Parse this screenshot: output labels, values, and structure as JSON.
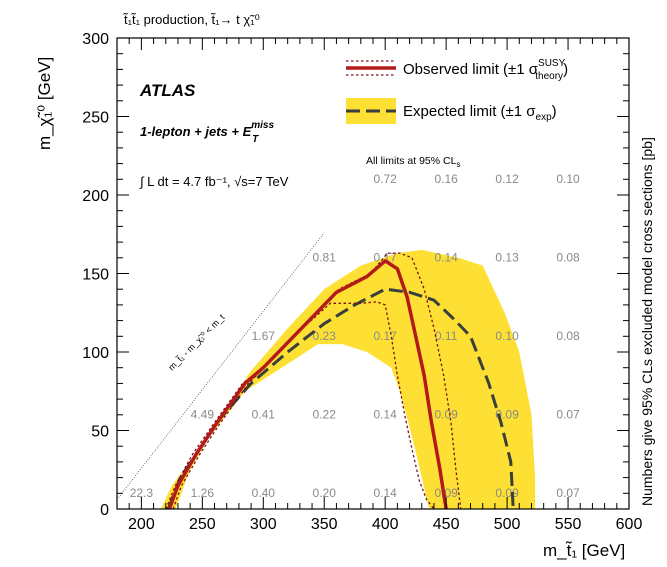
{
  "chart_data": {
    "type": "line",
    "title": "t̃₁t̃₁ production, t̃₁→ t χ̃₁⁰",
    "xlabel": "m_t̃₁ [GeV]",
    "ylabel": "m_χ̃₁⁰ [GeV]",
    "right_label": "Numbers give 95% CLs excluded model cross sections [pb]",
    "xlim": [
      180,
      600
    ],
    "ylim": [
      0,
      300
    ],
    "x_ticks": [
      200,
      250,
      300,
      350,
      400,
      450,
      500,
      550,
      600
    ],
    "y_ticks": [
      0,
      50,
      100,
      150,
      200,
      250,
      300
    ],
    "labels": {
      "atlas": "ATLAS",
      "channel": "1-lepton + jets + E",
      "channel_sup": "miss",
      "channel_sub": "T",
      "lumi": "∫ L dt = 4.7 fb⁻¹, √s=7 TeV",
      "cls_note": "All limits at 95% CL",
      "cls_sub": "s",
      "kinematic": "m_t̃₁ - m_χ̃₁⁰ < m_t"
    },
    "legend": {
      "placement": "top-right",
      "observed": "Observed limit (±1 σ",
      "observed_sup": "SUSY",
      "observed_sub": "theory",
      "expected": "Expected limit (±1 σ",
      "expected_sub": "exp"
    },
    "colors": {
      "observed": "#b31b1b",
      "expected": "#3a3f3a",
      "band": "#fde033",
      "numbers": "#8a8a8a"
    },
    "cross_sections": [
      {
        "x": 200,
        "y": 0,
        "v": "22.3"
      },
      {
        "x": 250,
        "y": 0,
        "v": "1.26"
      },
      {
        "x": 300,
        "y": 0,
        "v": "0.40"
      },
      {
        "x": 350,
        "y": 0,
        "v": "0.20"
      },
      {
        "x": 400,
        "y": 0,
        "v": "0.14"
      },
      {
        "x": 450,
        "y": 0,
        "v": "0.09"
      },
      {
        "x": 500,
        "y": 0,
        "v": "0.09"
      },
      {
        "x": 550,
        "y": 0,
        "v": "0.07"
      },
      {
        "x": 250,
        "y": 50,
        "v": "4.49"
      },
      {
        "x": 300,
        "y": 50,
        "v": "0.41"
      },
      {
        "x": 350,
        "y": 50,
        "v": "0.22"
      },
      {
        "x": 400,
        "y": 50,
        "v": "0.14"
      },
      {
        "x": 450,
        "y": 50,
        "v": "0.09"
      },
      {
        "x": 500,
        "y": 50,
        "v": "0.09"
      },
      {
        "x": 550,
        "y": 50,
        "v": "0.07"
      },
      {
        "x": 300,
        "y": 100,
        "v": "1.67"
      },
      {
        "x": 350,
        "y": 100,
        "v": "0.23"
      },
      {
        "x": 400,
        "y": 100,
        "v": "0.17"
      },
      {
        "x": 450,
        "y": 100,
        "v": "0.11"
      },
      {
        "x": 500,
        "y": 100,
        "v": "0.10"
      },
      {
        "x": 550,
        "y": 100,
        "v": "0.08"
      },
      {
        "x": 350,
        "y": 150,
        "v": "0.81"
      },
      {
        "x": 400,
        "y": 150,
        "v": "0.17"
      },
      {
        "x": 450,
        "y": 150,
        "v": "0.14"
      },
      {
        "x": 500,
        "y": 150,
        "v": "0.13"
      },
      {
        "x": 550,
        "y": 150,
        "v": "0.08"
      },
      {
        "x": 400,
        "y": 200,
        "v": "0.72"
      },
      {
        "x": 450,
        "y": 200,
        "v": "0.16"
      },
      {
        "x": 500,
        "y": 200,
        "v": "0.12"
      },
      {
        "x": 550,
        "y": 200,
        "v": "0.10"
      }
    ],
    "series": [
      {
        "name": "Observed limit",
        "x": [
          223,
          230,
          245,
          262,
          285,
          300,
          325,
          360,
          385,
          400,
          410,
          418,
          425,
          432,
          438,
          445,
          450
        ],
        "y": [
          0,
          15,
          35,
          55,
          80,
          90,
          110,
          138,
          148,
          158,
          153,
          135,
          110,
          85,
          55,
          25,
          0
        ]
      },
      {
        "name": "Observed -1σ theory",
        "x": [
          220,
          228,
          242,
          260,
          283,
          300,
          322,
          355,
          380,
          393,
          400,
          405,
          410,
          416,
          422,
          428,
          434,
          440
        ],
        "y": [
          0,
          15,
          35,
          55,
          80,
          90,
          108,
          131,
          131,
          132,
          130,
          110,
          85,
          60,
          38,
          18,
          6,
          0
        ]
      },
      {
        "name": "Observed +1σ theory",
        "x": [
          226,
          233,
          248,
          265,
          288,
          303,
          328,
          362,
          388,
          402,
          412,
          422,
          432,
          440,
          448,
          454,
          458,
          462
        ],
        "y": [
          0,
          15,
          35,
          55,
          80,
          92,
          112,
          140,
          150,
          163,
          163,
          160,
          140,
          115,
          85,
          55,
          25,
          0
        ]
      },
      {
        "name": "Expected limit",
        "x": [
          222,
          232,
          245,
          265,
          290,
          320,
          350,
          375,
          400,
          420,
          440,
          455,
          470,
          485,
          495,
          503,
          505
        ],
        "y": [
          0,
          20,
          35,
          58,
          80,
          100,
          118,
          130,
          140,
          138,
          133,
          122,
          110,
          80,
          55,
          30,
          0
        ]
      }
    ],
    "band": {
      "upper": {
        "x": [
          228,
          240,
          255,
          270,
          290,
          320,
          350,
          380,
          410,
          430,
          460,
          480,
          498,
          510,
          520,
          523,
          523
        ],
        "y": [
          0,
          25,
          45,
          65,
          88,
          115,
          140,
          155,
          163,
          165,
          160,
          155,
          125,
          100,
          60,
          20,
          0
        ]
      },
      "lower": {
        "x": [
          216,
          225,
          240,
          260,
          285,
          315,
          345,
          365,
          385,
          405,
          412,
          418,
          424,
          430,
          436
        ],
        "y": [
          0,
          15,
          30,
          50,
          75,
          90,
          105,
          105,
          100,
          90,
          75,
          58,
          40,
          20,
          0
        ]
      }
    },
    "kinematic_line": {
      "x": [
        180,
        350
      ],
      "y": [
        6,
        176
      ]
    }
  }
}
